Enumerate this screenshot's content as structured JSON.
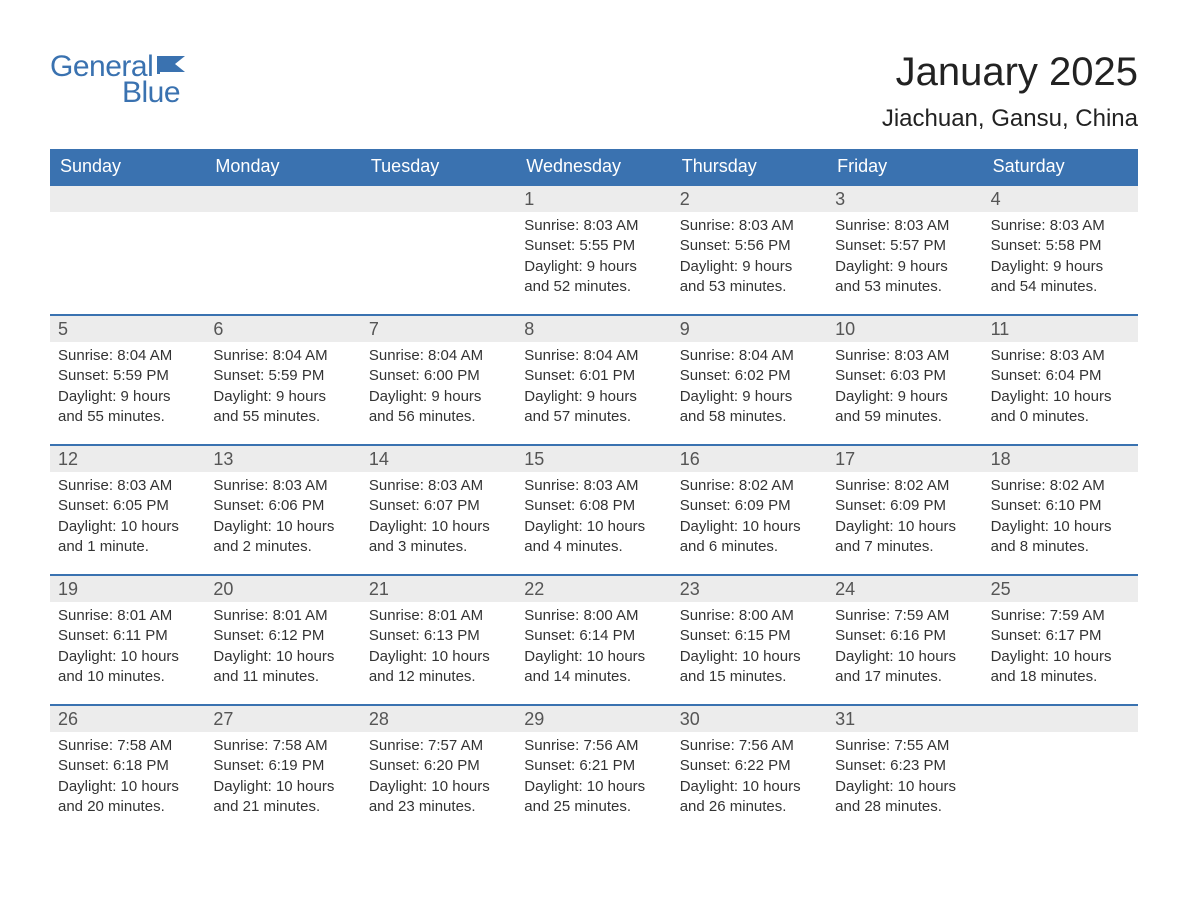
{
  "logo": {
    "text1": "General",
    "text2": "Blue",
    "flag_color": "#3a72b0"
  },
  "title": "January 2025",
  "location": "Jiachuan, Gansu, China",
  "colors": {
    "header_bg": "#3a72b0",
    "header_text": "#ffffff",
    "daynum_bg": "#ececec",
    "daynum_text": "#555555",
    "body_text": "#333333",
    "page_bg": "#ffffff",
    "border": "#3a72b0"
  },
  "day_labels": [
    "Sunday",
    "Monday",
    "Tuesday",
    "Wednesday",
    "Thursday",
    "Friday",
    "Saturday"
  ],
  "weeks": [
    [
      {
        "num": "",
        "sunrise": "",
        "sunset": "",
        "daylight": ""
      },
      {
        "num": "",
        "sunrise": "",
        "sunset": "",
        "daylight": ""
      },
      {
        "num": "",
        "sunrise": "",
        "sunset": "",
        "daylight": ""
      },
      {
        "num": "1",
        "sunrise": "Sunrise: 8:03 AM",
        "sunset": "Sunset: 5:55 PM",
        "daylight": "Daylight: 9 hours and 52 minutes."
      },
      {
        "num": "2",
        "sunrise": "Sunrise: 8:03 AM",
        "sunset": "Sunset: 5:56 PM",
        "daylight": "Daylight: 9 hours and 53 minutes."
      },
      {
        "num": "3",
        "sunrise": "Sunrise: 8:03 AM",
        "sunset": "Sunset: 5:57 PM",
        "daylight": "Daylight: 9 hours and 53 minutes."
      },
      {
        "num": "4",
        "sunrise": "Sunrise: 8:03 AM",
        "sunset": "Sunset: 5:58 PM",
        "daylight": "Daylight: 9 hours and 54 minutes."
      }
    ],
    [
      {
        "num": "5",
        "sunrise": "Sunrise: 8:04 AM",
        "sunset": "Sunset: 5:59 PM",
        "daylight": "Daylight: 9 hours and 55 minutes."
      },
      {
        "num": "6",
        "sunrise": "Sunrise: 8:04 AM",
        "sunset": "Sunset: 5:59 PM",
        "daylight": "Daylight: 9 hours and 55 minutes."
      },
      {
        "num": "7",
        "sunrise": "Sunrise: 8:04 AM",
        "sunset": "Sunset: 6:00 PM",
        "daylight": "Daylight: 9 hours and 56 minutes."
      },
      {
        "num": "8",
        "sunrise": "Sunrise: 8:04 AM",
        "sunset": "Sunset: 6:01 PM",
        "daylight": "Daylight: 9 hours and 57 minutes."
      },
      {
        "num": "9",
        "sunrise": "Sunrise: 8:04 AM",
        "sunset": "Sunset: 6:02 PM",
        "daylight": "Daylight: 9 hours and 58 minutes."
      },
      {
        "num": "10",
        "sunrise": "Sunrise: 8:03 AM",
        "sunset": "Sunset: 6:03 PM",
        "daylight": "Daylight: 9 hours and 59 minutes."
      },
      {
        "num": "11",
        "sunrise": "Sunrise: 8:03 AM",
        "sunset": "Sunset: 6:04 PM",
        "daylight": "Daylight: 10 hours and 0 minutes."
      }
    ],
    [
      {
        "num": "12",
        "sunrise": "Sunrise: 8:03 AM",
        "sunset": "Sunset: 6:05 PM",
        "daylight": "Daylight: 10 hours and 1 minute."
      },
      {
        "num": "13",
        "sunrise": "Sunrise: 8:03 AM",
        "sunset": "Sunset: 6:06 PM",
        "daylight": "Daylight: 10 hours and 2 minutes."
      },
      {
        "num": "14",
        "sunrise": "Sunrise: 8:03 AM",
        "sunset": "Sunset: 6:07 PM",
        "daylight": "Daylight: 10 hours and 3 minutes."
      },
      {
        "num": "15",
        "sunrise": "Sunrise: 8:03 AM",
        "sunset": "Sunset: 6:08 PM",
        "daylight": "Daylight: 10 hours and 4 minutes."
      },
      {
        "num": "16",
        "sunrise": "Sunrise: 8:02 AM",
        "sunset": "Sunset: 6:09 PM",
        "daylight": "Daylight: 10 hours and 6 minutes."
      },
      {
        "num": "17",
        "sunrise": "Sunrise: 8:02 AM",
        "sunset": "Sunset: 6:09 PM",
        "daylight": "Daylight: 10 hours and 7 minutes."
      },
      {
        "num": "18",
        "sunrise": "Sunrise: 8:02 AM",
        "sunset": "Sunset: 6:10 PM",
        "daylight": "Daylight: 10 hours and 8 minutes."
      }
    ],
    [
      {
        "num": "19",
        "sunrise": "Sunrise: 8:01 AM",
        "sunset": "Sunset: 6:11 PM",
        "daylight": "Daylight: 10 hours and 10 minutes."
      },
      {
        "num": "20",
        "sunrise": "Sunrise: 8:01 AM",
        "sunset": "Sunset: 6:12 PM",
        "daylight": "Daylight: 10 hours and 11 minutes."
      },
      {
        "num": "21",
        "sunrise": "Sunrise: 8:01 AM",
        "sunset": "Sunset: 6:13 PM",
        "daylight": "Daylight: 10 hours and 12 minutes."
      },
      {
        "num": "22",
        "sunrise": "Sunrise: 8:00 AM",
        "sunset": "Sunset: 6:14 PM",
        "daylight": "Daylight: 10 hours and 14 minutes."
      },
      {
        "num": "23",
        "sunrise": "Sunrise: 8:00 AM",
        "sunset": "Sunset: 6:15 PM",
        "daylight": "Daylight: 10 hours and 15 minutes."
      },
      {
        "num": "24",
        "sunrise": "Sunrise: 7:59 AM",
        "sunset": "Sunset: 6:16 PM",
        "daylight": "Daylight: 10 hours and 17 minutes."
      },
      {
        "num": "25",
        "sunrise": "Sunrise: 7:59 AM",
        "sunset": "Sunset: 6:17 PM",
        "daylight": "Daylight: 10 hours and 18 minutes."
      }
    ],
    [
      {
        "num": "26",
        "sunrise": "Sunrise: 7:58 AM",
        "sunset": "Sunset: 6:18 PM",
        "daylight": "Daylight: 10 hours and 20 minutes."
      },
      {
        "num": "27",
        "sunrise": "Sunrise: 7:58 AM",
        "sunset": "Sunset: 6:19 PM",
        "daylight": "Daylight: 10 hours and 21 minutes."
      },
      {
        "num": "28",
        "sunrise": "Sunrise: 7:57 AM",
        "sunset": "Sunset: 6:20 PM",
        "daylight": "Daylight: 10 hours and 23 minutes."
      },
      {
        "num": "29",
        "sunrise": "Sunrise: 7:56 AM",
        "sunset": "Sunset: 6:21 PM",
        "daylight": "Daylight: 10 hours and 25 minutes."
      },
      {
        "num": "30",
        "sunrise": "Sunrise: 7:56 AM",
        "sunset": "Sunset: 6:22 PM",
        "daylight": "Daylight: 10 hours and 26 minutes."
      },
      {
        "num": "31",
        "sunrise": "Sunrise: 7:55 AM",
        "sunset": "Sunset: 6:23 PM",
        "daylight": "Daylight: 10 hours and 28 minutes."
      },
      {
        "num": "",
        "sunrise": "",
        "sunset": "",
        "daylight": ""
      }
    ]
  ]
}
